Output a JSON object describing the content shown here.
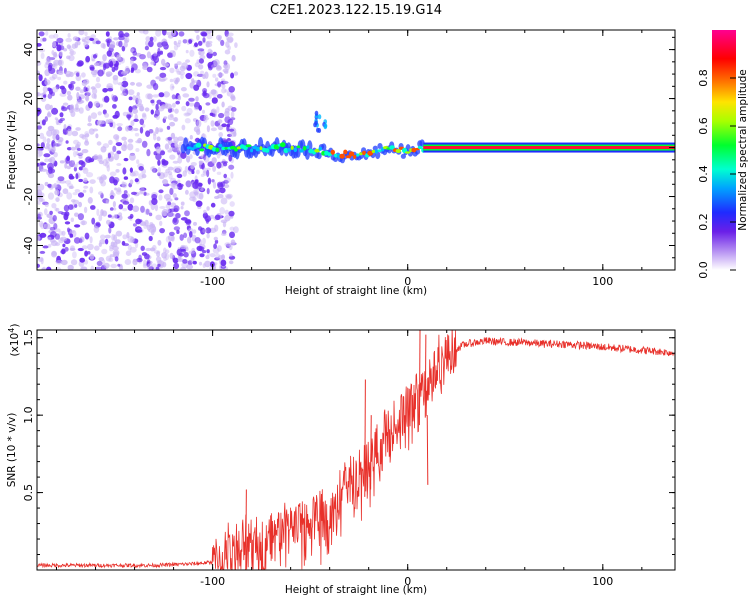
{
  "title": "C2E1.2023.122.15.19.G14",
  "colors": {
    "dots": "#6a2bf0",
    "dots_light": "#c9b4f5",
    "snr_line": "#e8302a",
    "axis": "#000000"
  },
  "chart_data": [
    {
      "type": "heatmap",
      "xlabel": "Height of straight line (km)",
      "ylabel": "Frequency (Hz)",
      "xlim": [
        -190,
        137
      ],
      "ylim": [
        -50,
        48
      ],
      "xticks": [
        -100,
        0,
        100
      ],
      "xtick_labels": [
        "-100",
        "0",
        "100"
      ],
      "yticks": [
        -40,
        -20,
        0,
        20,
        40
      ],
      "ytick_labels": [
        "-40",
        "-20",
        "0",
        "20",
        "40"
      ],
      "colorbar": {
        "label": "Normalized spectral amplitude",
        "range": [
          0,
          1
        ],
        "ticks": [
          0.0,
          0.2,
          0.4,
          0.6,
          0.8
        ],
        "tick_labels": [
          "0.0",
          "0.2",
          "0.4",
          "0.6",
          "0.8"
        ],
        "colormap": "rainbow (white-purple-blue-cyan-green-yellow-red-magenta)"
      },
      "features": {
        "noise_region_x": [
          -190,
          -100
        ],
        "narrow_band_start_x": 8,
        "narrow_band_freq": 0,
        "band_trend": [
          {
            "x": -115,
            "freq": 0
          },
          {
            "x": -80,
            "freq": 0
          },
          {
            "x": -55,
            "freq": 0
          },
          {
            "x": -35,
            "freq": -3
          },
          {
            "x": -20,
            "freq": -3
          },
          {
            "x": -10,
            "freq": 0
          },
          {
            "x": 0,
            "freq": -2
          },
          {
            "x": 8,
            "freq": 0
          },
          {
            "x": 137,
            "freq": 0
          }
        ]
      },
      "grid": false
    },
    {
      "type": "line",
      "xlabel": "Height of straight line (km)",
      "ylabel": "SNR (10 * v/v)",
      "y_multiplier": "(x10",
      "y_multiplier_exp": "4",
      "y_multiplier_close": ")",
      "xlim": [
        -190,
        137
      ],
      "ylim": [
        0,
        1.55
      ],
      "xticks": [
        -100,
        0,
        100
      ],
      "xtick_labels": [
        "-100",
        "0",
        "100"
      ],
      "yticks": [
        0.5,
        1.0,
        1.5
      ],
      "ytick_labels": [
        "0.5",
        "1.0",
        "1.5"
      ],
      "series": [
        {
          "x": [
            -190,
            -160,
            -130,
            -110,
            -100,
            -95,
            -90,
            -85,
            -80,
            -75,
            -70,
            -65,
            -60,
            -55,
            -50,
            -45,
            -40,
            -35,
            -30,
            -25,
            -20,
            -15,
            -10,
            -5,
            0,
            5,
            10,
            15,
            20,
            25,
            30,
            40,
            50,
            60,
            70,
            80,
            90,
            100,
            110,
            120,
            130,
            137
          ],
          "y": [
            0.03,
            0.03,
            0.03,
            0.04,
            0.05,
            0.08,
            0.12,
            0.15,
            0.17,
            0.2,
            0.22,
            0.25,
            0.27,
            0.3,
            0.33,
            0.38,
            0.42,
            0.47,
            0.55,
            0.63,
            0.7,
            0.8,
            0.88,
            0.95,
            1.05,
            1.12,
            1.2,
            1.3,
            1.38,
            1.43,
            1.46,
            1.48,
            1.47,
            1.47,
            1.46,
            1.46,
            1.45,
            1.44,
            1.43,
            1.42,
            1.41,
            1.4
          ]
        }
      ],
      "spikes": [
        {
          "x": -83,
          "y": 0.52
        },
        {
          "x": -22,
          "y": 1.23
        },
        {
          "x": -19,
          "y": 1.0
        },
        {
          "x": 6,
          "y": 1.55
        },
        {
          "x": 9,
          "y": 1.52
        },
        {
          "x": 10,
          "y": 0.55
        }
      ],
      "grid": false
    }
  ]
}
